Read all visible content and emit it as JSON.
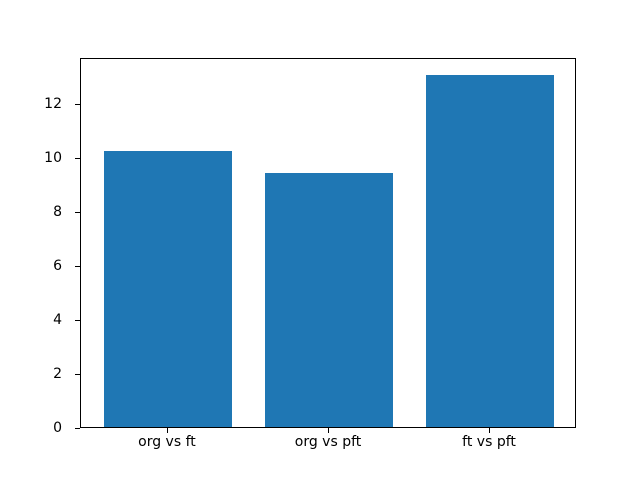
{
  "figure": {
    "background": "#ffffff"
  },
  "chart_data": {
    "type": "bar",
    "categories": [
      "org vs ft",
      "org vs pft",
      "ft vs pft"
    ],
    "values": [
      10.23,
      9.41,
      13.05
    ],
    "title": "",
    "xlabel": "",
    "ylabel": "",
    "ylim": [
      0,
      13.71
    ],
    "xlim": [
      -0.54,
      2.54
    ],
    "bar_width": 0.8,
    "yticks": [
      0,
      2,
      4,
      6,
      8,
      10,
      12
    ],
    "bar_color": "#1f77b4",
    "axes_edge_color": "#000000",
    "text_color": "#000000",
    "grid": false,
    "legend": "none"
  }
}
